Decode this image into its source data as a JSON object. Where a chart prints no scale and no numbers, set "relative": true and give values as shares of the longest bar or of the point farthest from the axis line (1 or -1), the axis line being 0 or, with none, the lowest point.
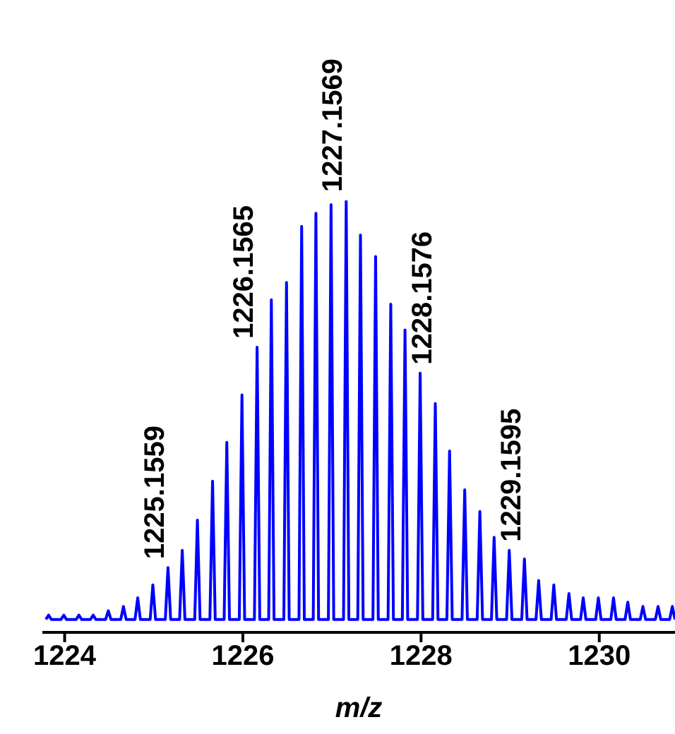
{
  "chart_data": {
    "type": "line",
    "xlabel": "m/z",
    "relative": true,
    "xlim": [
      1223.75,
      1230.85
    ],
    "xticks": [
      1224,
      1226,
      1228,
      1230
    ],
    "x": [
      1223.79,
      1223.82,
      1223.85,
      1223.96,
      1223.99,
      1224.02,
      1224.13,
      1224.16,
      1224.19,
      1224.29,
      1224.32,
      1224.35,
      1224.46,
      1224.49,
      1224.52,
      1224.63,
      1224.66,
      1224.69,
      1224.79,
      1224.82,
      1224.85,
      1224.96,
      1224.99,
      1225.02,
      1225.13,
      1225.16,
      1225.19,
      1225.29,
      1225.32,
      1225.35,
      1225.46,
      1225.49,
      1225.52,
      1225.63,
      1225.66,
      1225.69,
      1225.79,
      1225.82,
      1225.85,
      1225.96,
      1225.99,
      1226.02,
      1226.13,
      1226.16,
      1226.19,
      1226.29,
      1226.32,
      1226.35,
      1226.46,
      1226.49,
      1226.52,
      1226.63,
      1226.66,
      1226.69,
      1226.79,
      1226.82,
      1226.85,
      1226.96,
      1226.99,
      1227.02,
      1227.13,
      1227.16,
      1227.19,
      1227.29,
      1227.32,
      1227.35,
      1227.46,
      1227.49,
      1227.52,
      1227.63,
      1227.66,
      1227.69,
      1227.79,
      1227.82,
      1227.85,
      1227.96,
      1227.99,
      1228.02,
      1228.13,
      1228.16,
      1228.19,
      1228.29,
      1228.32,
      1228.35,
      1228.46,
      1228.49,
      1228.52,
      1228.63,
      1228.66,
      1228.69,
      1228.79,
      1228.82,
      1228.85,
      1228.96,
      1228.99,
      1229.02,
      1229.13,
      1229.16,
      1229.19,
      1229.29,
      1229.32,
      1229.35,
      1229.46,
      1229.49,
      1229.52,
      1229.63,
      1229.66,
      1229.69,
      1229.79,
      1229.82,
      1229.85,
      1229.96,
      1229.99,
      1230.02,
      1230.13,
      1230.16,
      1230.19,
      1230.29,
      1230.32,
      1230.35,
      1230.46,
      1230.49,
      1230.52,
      1230.63,
      1230.66,
      1230.69,
      1230.79,
      1230.82,
      1230.85
    ],
    "series": [
      {
        "color": "#0000ff",
        "values": [
          0.03,
          0.04,
          0.03,
          0.03,
          0.04,
          0.03,
          0.03,
          0.04,
          0.03,
          0.03,
          0.04,
          0.03,
          0.03,
          0.05,
          0.03,
          0.03,
          0.06,
          0.03,
          0.03,
          0.08,
          0.03,
          0.03,
          0.11,
          0.03,
          0.03,
          0.15,
          0.03,
          0.03,
          0.19,
          0.03,
          0.03,
          0.26,
          0.03,
          0.03,
          0.35,
          0.03,
          0.03,
          0.44,
          0.03,
          0.03,
          0.55,
          0.03,
          0.03,
          0.66,
          0.03,
          0.03,
          0.77,
          0.03,
          0.03,
          0.81,
          0.03,
          0.03,
          0.94,
          0.03,
          0.03,
          0.97,
          0.03,
          0.03,
          0.99,
          0.03,
          0.03,
          1,
          0.03,
          0.03,
          0.92,
          0.03,
          0.03,
          0.87,
          0.03,
          0.03,
          0.76,
          0.03,
          0.03,
          0.7,
          0.03,
          0.03,
          0.6,
          0.03,
          0.03,
          0.53,
          0.03,
          0.03,
          0.42,
          0.03,
          0.03,
          0.33,
          0.03,
          0.03,
          0.28,
          0.03,
          0.03,
          0.22,
          0.03,
          0.03,
          0.19,
          0.03,
          0.03,
          0.17,
          0.03,
          0.03,
          0.12,
          0.03,
          0.03,
          0.11,
          0.03,
          0.03,
          0.09,
          0.03,
          0.03,
          0.08,
          0.03,
          0.03,
          0.08,
          0.03,
          0.03,
          0.08,
          0.03,
          0.03,
          0.07,
          0.03,
          0.03,
          0.06,
          0.03,
          0.03,
          0.06,
          0.03,
          0.03,
          0.06,
          0.03
        ]
      }
    ],
    "annotations": [
      {
        "text": "1225.1559",
        "x": 1225.16,
        "y": 0.15
      },
      {
        "text": "1226.1565",
        "x": 1226.16,
        "y": 0.66
      },
      {
        "text": "1227.1569",
        "x": 1227.16,
        "y": 1
      },
      {
        "text": "1228.1576",
        "x": 1228.16,
        "y": 0.53
      },
      {
        "text": "1229.1595",
        "x": 1229.16,
        "y": 0.17
      }
    ]
  }
}
